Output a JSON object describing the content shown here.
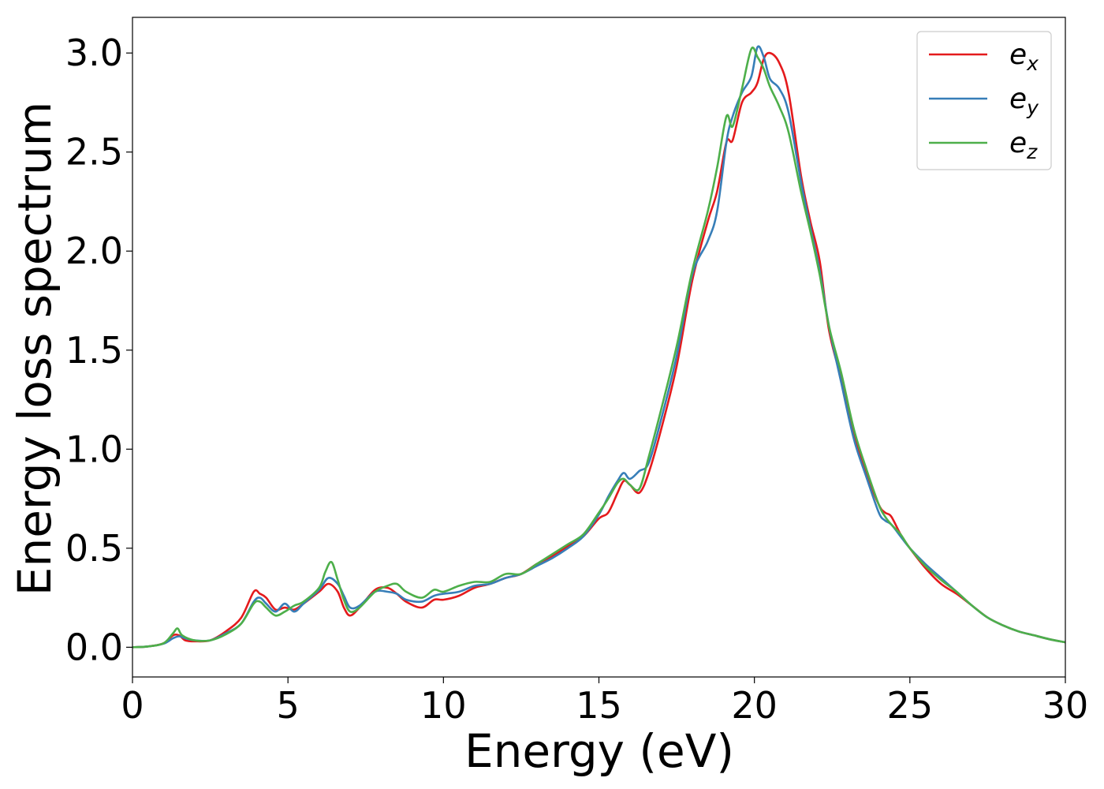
{
  "chart_data": {
    "type": "line",
    "xlabel": "Energy (eV)",
    "ylabel": "Energy loss spectrum",
    "xlim": [
      0,
      30
    ],
    "ylim": [
      -0.15,
      3.18
    ],
    "xticks": [
      "0",
      "5",
      "10",
      "15",
      "20",
      "25",
      "30"
    ],
    "yticks": [
      "0.0",
      "0.5",
      "1.0",
      "1.5",
      "2.0",
      "2.5",
      "3.0"
    ],
    "grid": false,
    "legend_position": "top-right",
    "series": [
      {
        "name": "e",
        "subscript": "x",
        "color": "#e41a1c",
        "points": [
          [
            0,
            0.0
          ],
          [
            0.5,
            0.004
          ],
          [
            1.0,
            0.02
          ],
          [
            1.3,
            0.06
          ],
          [
            1.5,
            0.06
          ],
          [
            1.7,
            0.035
          ],
          [
            2.0,
            0.03
          ],
          [
            2.5,
            0.035
          ],
          [
            3.0,
            0.08
          ],
          [
            3.5,
            0.15
          ],
          [
            3.9,
            0.28
          ],
          [
            4.1,
            0.27
          ],
          [
            4.3,
            0.25
          ],
          [
            4.6,
            0.19
          ],
          [
            4.9,
            0.2
          ],
          [
            5.2,
            0.19
          ],
          [
            5.5,
            0.22
          ],
          [
            6.0,
            0.28
          ],
          [
            6.3,
            0.32
          ],
          [
            6.6,
            0.28
          ],
          [
            6.8,
            0.2
          ],
          [
            7.0,
            0.16
          ],
          [
            7.3,
            0.2
          ],
          [
            7.8,
            0.29
          ],
          [
            8.2,
            0.3
          ],
          [
            8.5,
            0.27
          ],
          [
            8.8,
            0.23
          ],
          [
            9.3,
            0.2
          ],
          [
            9.7,
            0.24
          ],
          [
            10.0,
            0.24
          ],
          [
            10.5,
            0.26
          ],
          [
            11.0,
            0.3
          ],
          [
            11.5,
            0.32
          ],
          [
            12.0,
            0.35
          ],
          [
            12.5,
            0.37
          ],
          [
            13.0,
            0.42
          ],
          [
            13.5,
            0.46
          ],
          [
            14.0,
            0.51
          ],
          [
            14.5,
            0.56
          ],
          [
            15.0,
            0.65
          ],
          [
            15.3,
            0.68
          ],
          [
            15.6,
            0.78
          ],
          [
            15.8,
            0.84
          ],
          [
            16.0,
            0.82
          ],
          [
            16.3,
            0.78
          ],
          [
            16.6,
            0.88
          ],
          [
            17.0,
            1.1
          ],
          [
            17.5,
            1.42
          ],
          [
            18.0,
            1.85
          ],
          [
            18.5,
            2.15
          ],
          [
            18.8,
            2.3
          ],
          [
            19.1,
            2.55
          ],
          [
            19.3,
            2.56
          ],
          [
            19.6,
            2.75
          ],
          [
            19.9,
            2.8
          ],
          [
            20.1,
            2.85
          ],
          [
            20.3,
            2.97
          ],
          [
            20.5,
            3.0
          ],
          [
            20.8,
            2.95
          ],
          [
            21.1,
            2.8
          ],
          [
            21.5,
            2.38
          ],
          [
            21.8,
            2.15
          ],
          [
            22.1,
            1.95
          ],
          [
            22.4,
            1.6
          ],
          [
            22.8,
            1.35
          ],
          [
            23.2,
            1.08
          ],
          [
            23.6,
            0.88
          ],
          [
            24.0,
            0.72
          ],
          [
            24.2,
            0.68
          ],
          [
            24.4,
            0.66
          ],
          [
            24.7,
            0.57
          ],
          [
            25.0,
            0.5
          ],
          [
            25.5,
            0.4
          ],
          [
            26.0,
            0.32
          ],
          [
            26.5,
            0.27
          ],
          [
            27.0,
            0.21
          ],
          [
            27.5,
            0.15
          ],
          [
            28.0,
            0.11
          ],
          [
            28.5,
            0.08
          ],
          [
            29.0,
            0.06
          ],
          [
            29.5,
            0.04
          ],
          [
            30.0,
            0.025
          ]
        ]
      },
      {
        "name": "e",
        "subscript": "y",
        "color": "#377eb8",
        "points": [
          [
            0,
            0.0
          ],
          [
            0.5,
            0.004
          ],
          [
            1.0,
            0.018
          ],
          [
            1.3,
            0.045
          ],
          [
            1.5,
            0.055
          ],
          [
            1.7,
            0.045
          ],
          [
            2.0,
            0.035
          ],
          [
            2.5,
            0.035
          ],
          [
            3.0,
            0.07
          ],
          [
            3.5,
            0.12
          ],
          [
            3.9,
            0.23
          ],
          [
            4.1,
            0.25
          ],
          [
            4.3,
            0.22
          ],
          [
            4.6,
            0.18
          ],
          [
            4.9,
            0.22
          ],
          [
            5.2,
            0.18
          ],
          [
            5.5,
            0.22
          ],
          [
            6.0,
            0.29
          ],
          [
            6.3,
            0.35
          ],
          [
            6.6,
            0.32
          ],
          [
            6.8,
            0.26
          ],
          [
            7.0,
            0.2
          ],
          [
            7.3,
            0.21
          ],
          [
            7.8,
            0.28
          ],
          [
            8.2,
            0.28
          ],
          [
            8.5,
            0.27
          ],
          [
            8.8,
            0.24
          ],
          [
            9.3,
            0.23
          ],
          [
            9.7,
            0.26
          ],
          [
            10.0,
            0.27
          ],
          [
            10.5,
            0.28
          ],
          [
            11.0,
            0.31
          ],
          [
            11.5,
            0.32
          ],
          [
            12.0,
            0.35
          ],
          [
            12.5,
            0.37
          ],
          [
            13.0,
            0.41
          ],
          [
            13.5,
            0.45
          ],
          [
            14.0,
            0.5
          ],
          [
            14.5,
            0.56
          ],
          [
            15.0,
            0.67
          ],
          [
            15.3,
            0.76
          ],
          [
            15.6,
            0.84
          ],
          [
            15.8,
            0.88
          ],
          [
            16.0,
            0.85
          ],
          [
            16.3,
            0.89
          ],
          [
            16.6,
            0.93
          ],
          [
            17.0,
            1.15
          ],
          [
            17.5,
            1.47
          ],
          [
            18.0,
            1.88
          ],
          [
            18.5,
            2.05
          ],
          [
            18.8,
            2.2
          ],
          [
            19.1,
            2.55
          ],
          [
            19.3,
            2.68
          ],
          [
            19.6,
            2.8
          ],
          [
            19.9,
            2.88
          ],
          [
            20.1,
            3.03
          ],
          [
            20.3,
            2.98
          ],
          [
            20.5,
            2.87
          ],
          [
            20.8,
            2.82
          ],
          [
            21.1,
            2.7
          ],
          [
            21.5,
            2.35
          ],
          [
            21.8,
            2.12
          ],
          [
            22.1,
            1.9
          ],
          [
            22.4,
            1.62
          ],
          [
            22.8,
            1.33
          ],
          [
            23.2,
            1.05
          ],
          [
            23.6,
            0.86
          ],
          [
            24.0,
            0.68
          ],
          [
            24.2,
            0.64
          ],
          [
            24.4,
            0.62
          ],
          [
            24.7,
            0.56
          ],
          [
            25.0,
            0.5
          ],
          [
            25.5,
            0.42
          ],
          [
            26.0,
            0.35
          ],
          [
            26.5,
            0.28
          ],
          [
            27.0,
            0.21
          ],
          [
            27.5,
            0.15
          ],
          [
            28.0,
            0.11
          ],
          [
            28.5,
            0.08
          ],
          [
            29.0,
            0.06
          ],
          [
            29.5,
            0.04
          ],
          [
            30.0,
            0.025
          ]
        ]
      },
      {
        "name": "e",
        "subscript": "z",
        "color": "#4daf4a",
        "points": [
          [
            0,
            0.0
          ],
          [
            0.5,
            0.004
          ],
          [
            1.0,
            0.02
          ],
          [
            1.3,
            0.07
          ],
          [
            1.45,
            0.095
          ],
          [
            1.6,
            0.06
          ],
          [
            2.0,
            0.035
          ],
          [
            2.5,
            0.035
          ],
          [
            3.0,
            0.065
          ],
          [
            3.5,
            0.12
          ],
          [
            3.9,
            0.22
          ],
          [
            4.1,
            0.23
          ],
          [
            4.3,
            0.2
          ],
          [
            4.6,
            0.16
          ],
          [
            4.9,
            0.18
          ],
          [
            5.2,
            0.21
          ],
          [
            5.5,
            0.23
          ],
          [
            6.0,
            0.3
          ],
          [
            6.2,
            0.38
          ],
          [
            6.4,
            0.43
          ],
          [
            6.6,
            0.34
          ],
          [
            6.8,
            0.24
          ],
          [
            7.0,
            0.18
          ],
          [
            7.3,
            0.2
          ],
          [
            7.8,
            0.28
          ],
          [
            8.2,
            0.31
          ],
          [
            8.5,
            0.32
          ],
          [
            8.8,
            0.28
          ],
          [
            9.3,
            0.25
          ],
          [
            9.7,
            0.29
          ],
          [
            10.0,
            0.28
          ],
          [
            10.5,
            0.31
          ],
          [
            11.0,
            0.33
          ],
          [
            11.5,
            0.33
          ],
          [
            12.0,
            0.37
          ],
          [
            12.5,
            0.37
          ],
          [
            13.0,
            0.42
          ],
          [
            13.5,
            0.47
          ],
          [
            14.0,
            0.52
          ],
          [
            14.5,
            0.57
          ],
          [
            15.0,
            0.68
          ],
          [
            15.3,
            0.75
          ],
          [
            15.6,
            0.83
          ],
          [
            15.8,
            0.85
          ],
          [
            16.0,
            0.82
          ],
          [
            16.3,
            0.8
          ],
          [
            16.6,
            0.96
          ],
          [
            17.0,
            1.2
          ],
          [
            17.5,
            1.52
          ],
          [
            18.0,
            1.9
          ],
          [
            18.5,
            2.2
          ],
          [
            18.8,
            2.42
          ],
          [
            19.1,
            2.68
          ],
          [
            19.3,
            2.63
          ],
          [
            19.6,
            2.82
          ],
          [
            19.9,
            3.02
          ],
          [
            20.1,
            2.98
          ],
          [
            20.3,
            2.92
          ],
          [
            20.5,
            2.83
          ],
          [
            20.8,
            2.73
          ],
          [
            21.1,
            2.6
          ],
          [
            21.5,
            2.3
          ],
          [
            21.8,
            2.1
          ],
          [
            22.1,
            1.88
          ],
          [
            22.4,
            1.62
          ],
          [
            22.8,
            1.38
          ],
          [
            23.2,
            1.1
          ],
          [
            23.6,
            0.9
          ],
          [
            24.0,
            0.72
          ],
          [
            24.2,
            0.66
          ],
          [
            24.4,
            0.62
          ],
          [
            24.7,
            0.57
          ],
          [
            25.0,
            0.5
          ],
          [
            25.5,
            0.41
          ],
          [
            26.0,
            0.34
          ],
          [
            26.5,
            0.28
          ],
          [
            27.0,
            0.21
          ],
          [
            27.5,
            0.15
          ],
          [
            28.0,
            0.11
          ],
          [
            28.5,
            0.08
          ],
          [
            29.0,
            0.06
          ],
          [
            29.5,
            0.04
          ],
          [
            30.0,
            0.025
          ]
        ]
      }
    ]
  }
}
